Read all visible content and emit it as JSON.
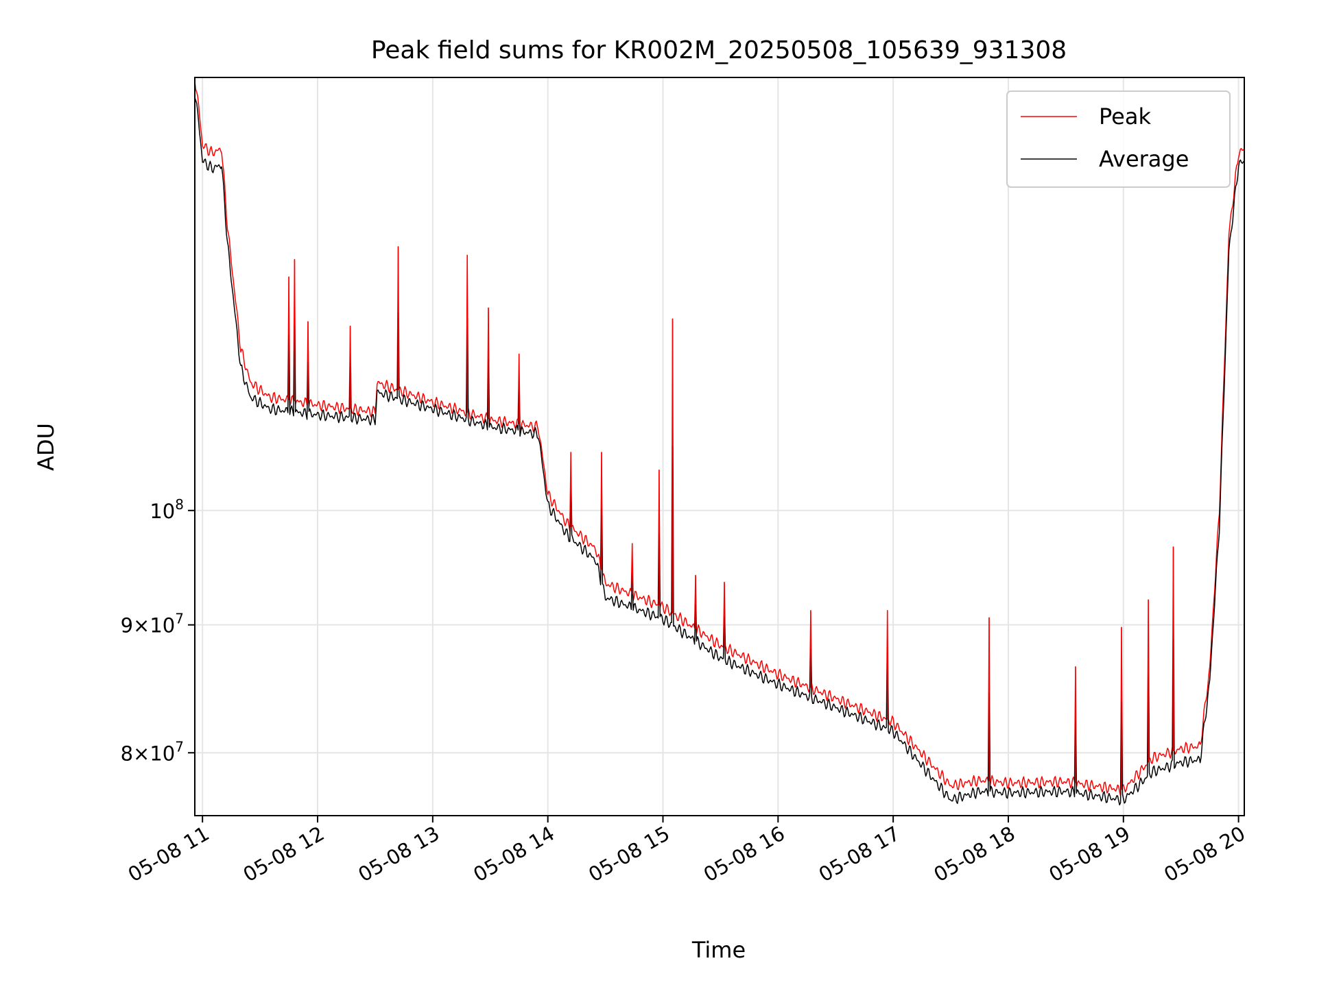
{
  "chart_data": {
    "type": "line",
    "title": "Peak field sums for KR002M_20250508_105639_931308",
    "xlabel": "Time",
    "ylabel": "ADU",
    "y_scale": "log",
    "ylim": [
      75500000,
      149000000
    ],
    "xlim": [
      "2025-05-08 10:56",
      "2025-05-08 20:03"
    ],
    "grid": true,
    "legend_position": "top-right",
    "x_ticks": [
      {
        "time": "2025-05-08 11:00",
        "label": "05-08 11"
      },
      {
        "time": "2025-05-08 12:00",
        "label": "05-08 12"
      },
      {
        "time": "2025-05-08 13:00",
        "label": "05-08 13"
      },
      {
        "time": "2025-05-08 14:00",
        "label": "05-08 14"
      },
      {
        "time": "2025-05-08 15:00",
        "label": "05-08 15"
      },
      {
        "time": "2025-05-08 16:00",
        "label": "05-08 16"
      },
      {
        "time": "2025-05-08 17:00",
        "label": "05-08 17"
      },
      {
        "time": "2025-05-08 18:00",
        "label": "05-08 18"
      },
      {
        "time": "2025-05-08 19:00",
        "label": "05-08 19"
      },
      {
        "time": "2025-05-08 20:00",
        "label": "05-08 20"
      }
    ],
    "y_ticks": [
      {
        "value": 80000000,
        "mant": "8",
        "exp": "7"
      },
      {
        "value": 90000000,
        "mant": "9",
        "exp": "7"
      },
      {
        "value": 100000000,
        "mant": "",
        "exp": "8"
      }
    ],
    "x": [
      "2025-05-08 10:56",
      "2025-05-08 10:58",
      "2025-05-08 11:00",
      "2025-05-08 11:05",
      "2025-05-08 11:10",
      "2025-05-08 11:13",
      "2025-05-08 11:20",
      "2025-05-08 11:25",
      "2025-05-08 11:35",
      "2025-05-08 12:00",
      "2025-05-08 12:30",
      "2025-05-08 12:31",
      "2025-05-08 13:00",
      "2025-05-08 13:30",
      "2025-05-08 13:55",
      "2025-05-08 14:00",
      "2025-05-08 14:10",
      "2025-05-08 14:25",
      "2025-05-08 14:30",
      "2025-05-08 15:00",
      "2025-05-08 15:30",
      "2025-05-08 16:00",
      "2025-05-08 16:30",
      "2025-05-08 17:00",
      "2025-05-08 17:30",
      "2025-05-08 17:45",
      "2025-05-08 18:00",
      "2025-05-08 18:30",
      "2025-05-08 19:00",
      "2025-05-08 19:15",
      "2025-05-08 19:30",
      "2025-05-08 19:40",
      "2025-05-08 19:45",
      "2025-05-08 19:50",
      "2025-05-08 19:55",
      "2025-05-08 20:00",
      "2025-05-08 20:03"
    ],
    "series": [
      {
        "name": "Peak",
        "color": "#ff0000",
        "values": [
          149000000,
          145000000,
          140000000,
          139000000,
          139500000,
          130000000,
          116000000,
          112500000,
          111000000,
          110200000,
          109500000,
          112500000,
          110500000,
          108700000,
          108000000,
          101500000,
          98800000,
          96500000,
          93500000,
          91500000,
          88300000,
          86000000,
          84100000,
          82300000,
          77600000,
          78000000,
          77800000,
          77900000,
          77300000,
          79600000,
          80300000,
          80500000,
          86500000,
          100000000,
          129000000,
          139000000,
          139500000
        ]
      },
      {
        "name": "Average",
        "color": "#000000",
        "values": [
          147000000,
          143000000,
          138000000,
          137000000,
          137500000,
          128000000,
          114000000,
          111000000,
          109800000,
          109200000,
          108700000,
          111500000,
          109800000,
          108000000,
          107300000,
          100500000,
          97800000,
          95500000,
          92300000,
          90500000,
          87300000,
          85200000,
          83400000,
          81600000,
          76600000,
          77200000,
          77100000,
          77200000,
          76600000,
          78600000,
          79300000,
          79500000,
          85500000,
          98500000,
          127000000,
          137500000,
          138000000
        ]
      }
    ],
    "spikes": [
      {
        "time": "2025-05-08 11:45",
        "value": 124000000
      },
      {
        "time": "2025-05-08 11:48",
        "value": 126000000
      },
      {
        "time": "2025-05-08 11:55",
        "value": 119000000
      },
      {
        "time": "2025-05-08 12:17",
        "value": 118500000
      },
      {
        "time": "2025-05-08 12:42",
        "value": 127500000
      },
      {
        "time": "2025-05-08 13:18",
        "value": 126500000
      },
      {
        "time": "2025-05-08 13:29",
        "value": 120500000
      },
      {
        "time": "2025-05-08 13:45",
        "value": 115500000
      },
      {
        "time": "2025-05-08 14:12",
        "value": 105500000
      },
      {
        "time": "2025-05-08 14:28",
        "value": 105500000
      },
      {
        "time": "2025-05-08 14:44",
        "value": 97000000
      },
      {
        "time": "2025-05-08 14:58",
        "value": 103800000
      },
      {
        "time": "2025-05-08 15:05",
        "value": 119300000
      },
      {
        "time": "2025-05-08 15:17",
        "value": 94200000
      },
      {
        "time": "2025-05-08 15:32",
        "value": 93600000
      },
      {
        "time": "2025-05-08 16:17",
        "value": 91200000
      },
      {
        "time": "2025-05-08 16:57",
        "value": 91200000
      },
      {
        "time": "2025-05-08 17:50",
        "value": 90600000
      },
      {
        "time": "2025-05-08 18:35",
        "value": 86600000
      },
      {
        "time": "2025-05-08 18:59",
        "value": 89800000
      },
      {
        "time": "2025-05-08 19:13",
        "value": 92100000
      },
      {
        "time": "2025-05-08 19:26",
        "value": 96700000
      }
    ]
  }
}
